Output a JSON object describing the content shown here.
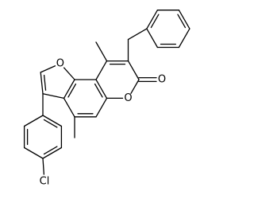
{
  "atoms": [
    {
      "label": "O"
    },
    {
      "label": "O"
    },
    {
      "label": "O"
    },
    {
      "label": "Cl"
    }
  ]
}
